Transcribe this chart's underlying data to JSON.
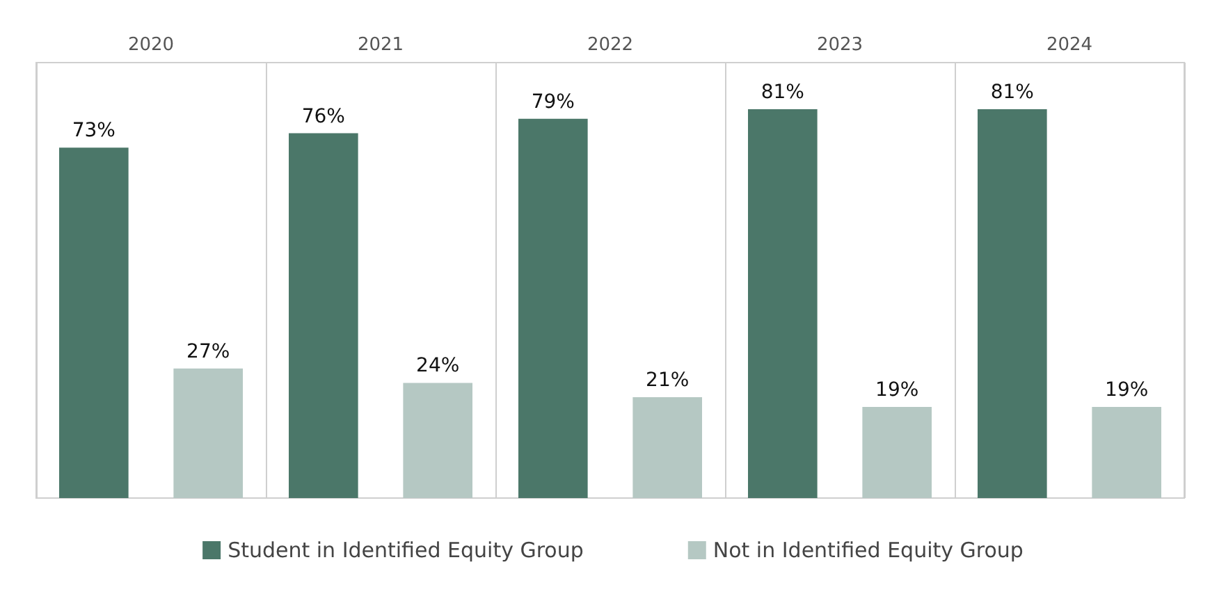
{
  "chart_data": {
    "type": "bar",
    "categories": [
      "2020",
      "2021",
      "2022",
      "2023",
      "2024"
    ],
    "series": [
      {
        "name": "Student in Identified Equity Group",
        "color": "#4b7769",
        "values": [
          73,
          76,
          79,
          81,
          81
        ],
        "value_labels": [
          "73%",
          "76%",
          "79%",
          "81%",
          "81%"
        ]
      },
      {
        "name": "Not in Identified Equity Group",
        "color": "#b5c8c3",
        "values": [
          27,
          24,
          21,
          19,
          19
        ],
        "value_labels": [
          "27%",
          "24%",
          "21%",
          "19%",
          "19%"
        ]
      }
    ],
    "grid": "x",
    "legend": "bottom"
  }
}
